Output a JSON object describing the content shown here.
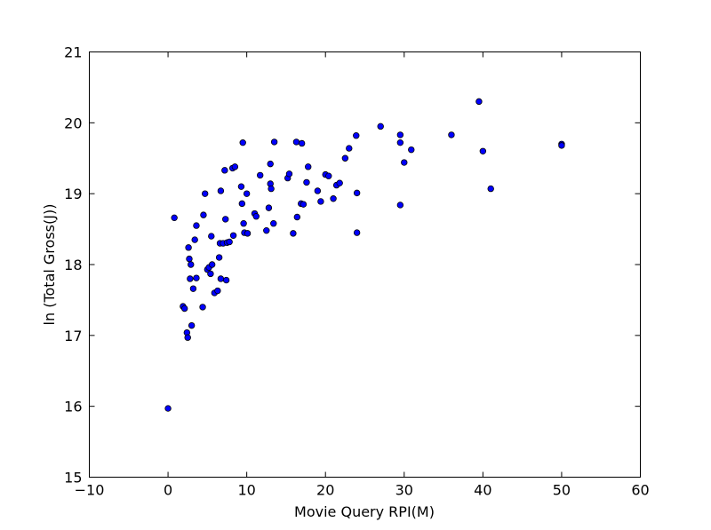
{
  "chart_data": {
    "type": "scatter",
    "title": "",
    "xlabel": "Movie Query RPI(M)",
    "ylabel": "ln (Total Gross(J))",
    "xlim": [
      -10,
      60
    ],
    "ylim": [
      15,
      21
    ],
    "xticks": [
      -10,
      0,
      10,
      20,
      30,
      40,
      50,
      60
    ],
    "yticks": [
      15,
      16,
      17,
      18,
      19,
      20,
      21
    ],
    "xtick_labels": [
      "−10",
      "0",
      "10",
      "20",
      "30",
      "40",
      "50",
      "60"
    ],
    "ytick_labels": [
      "15",
      "16",
      "17",
      "18",
      "19",
      "20",
      "21"
    ],
    "grid": false,
    "marker_color": "#0000ff",
    "series": [
      {
        "points": [
          [
            0.0,
            15.97
          ],
          [
            0.8,
            18.66
          ],
          [
            1.9,
            17.41
          ],
          [
            2.1,
            17.38
          ],
          [
            2.4,
            17.04
          ],
          [
            2.5,
            16.97
          ],
          [
            2.6,
            18.24
          ],
          [
            2.7,
            18.08
          ],
          [
            2.8,
            17.8
          ],
          [
            2.9,
            18.0
          ],
          [
            3.0,
            17.14
          ],
          [
            3.2,
            17.66
          ],
          [
            3.4,
            18.35
          ],
          [
            3.6,
            18.55
          ],
          [
            3.6,
            17.81
          ],
          [
            4.4,
            17.4
          ],
          [
            4.5,
            18.7
          ],
          [
            4.7,
            19.0
          ],
          [
            5.0,
            17.93
          ],
          [
            5.2,
            17.96
          ],
          [
            5.4,
            17.87
          ],
          [
            5.5,
            18.4
          ],
          [
            5.6,
            18.0
          ],
          [
            5.9,
            17.6
          ],
          [
            6.3,
            17.63
          ],
          [
            6.5,
            18.1
          ],
          [
            6.6,
            18.3
          ],
          [
            6.7,
            19.04
          ],
          [
            6.7,
            17.8
          ],
          [
            7.0,
            18.3
          ],
          [
            7.2,
            19.33
          ],
          [
            7.3,
            18.64
          ],
          [
            7.4,
            17.78
          ],
          [
            7.5,
            18.31
          ],
          [
            7.8,
            18.32
          ],
          [
            8.2,
            19.36
          ],
          [
            8.3,
            18.41
          ],
          [
            8.5,
            19.38
          ],
          [
            9.3,
            19.1
          ],
          [
            9.4,
            18.86
          ],
          [
            9.5,
            19.72
          ],
          [
            9.6,
            18.58
          ],
          [
            9.7,
            18.45
          ],
          [
            10.0,
            19.0
          ],
          [
            10.1,
            18.44
          ],
          [
            11.0,
            18.72
          ],
          [
            11.2,
            18.68
          ],
          [
            11.7,
            19.26
          ],
          [
            12.5,
            18.48
          ],
          [
            12.8,
            18.8
          ],
          [
            13.0,
            19.42
          ],
          [
            13.0,
            19.14
          ],
          [
            13.1,
            19.07
          ],
          [
            13.4,
            18.58
          ],
          [
            13.5,
            19.73
          ],
          [
            15.2,
            19.22
          ],
          [
            15.4,
            19.28
          ],
          [
            15.9,
            18.44
          ],
          [
            16.3,
            19.73
          ],
          [
            16.4,
            18.67
          ],
          [
            16.9,
            18.86
          ],
          [
            17.0,
            19.71
          ],
          [
            17.2,
            18.85
          ],
          [
            17.6,
            19.16
          ],
          [
            17.8,
            19.38
          ],
          [
            19.0,
            19.04
          ],
          [
            19.4,
            18.89
          ],
          [
            20.0,
            19.27
          ],
          [
            20.4,
            19.25
          ],
          [
            21.0,
            18.93
          ],
          [
            21.4,
            19.12
          ],
          [
            21.8,
            19.15
          ],
          [
            22.5,
            19.5
          ],
          [
            23.0,
            19.64
          ],
          [
            23.9,
            19.82
          ],
          [
            24.0,
            19.01
          ],
          [
            24.0,
            18.45
          ],
          [
            27.0,
            19.95
          ],
          [
            29.5,
            19.83
          ],
          [
            29.5,
            19.72
          ],
          [
            29.5,
            18.84
          ],
          [
            30.0,
            19.44
          ],
          [
            30.9,
            19.62
          ],
          [
            36.0,
            19.83
          ],
          [
            39.5,
            20.3
          ],
          [
            40.0,
            19.6
          ],
          [
            41.0,
            19.07
          ],
          [
            50.0,
            19.7
          ],
          [
            50.0,
            19.68
          ]
        ]
      }
    ]
  }
}
